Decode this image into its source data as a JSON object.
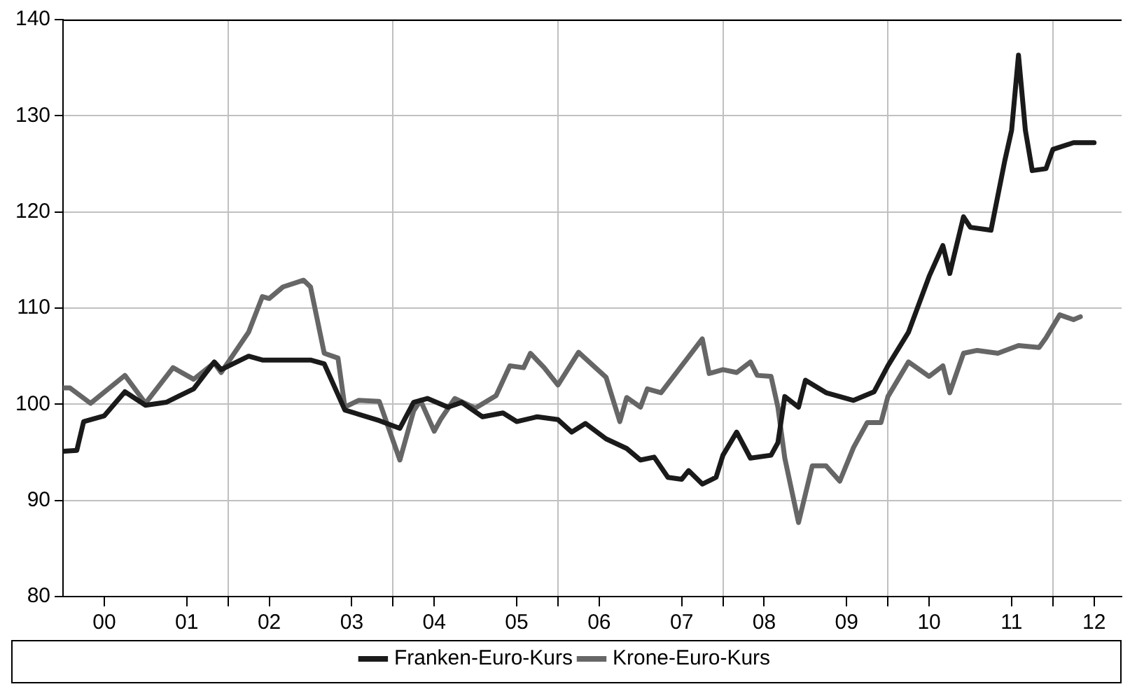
{
  "chart_data": {
    "type": "line",
    "xlim": [
      "2000-01",
      "2012-11"
    ],
    "ylim": [
      80,
      140
    ],
    "yticks": [
      80,
      90,
      100,
      110,
      120,
      130,
      140
    ],
    "xticks": [
      {
        "value": "2000-07",
        "label": "00"
      },
      {
        "value": "2001-07",
        "label": "01"
      },
      {
        "value": "2002-01",
        "label": null
      },
      {
        "value": "2002-07",
        "label": "02"
      },
      {
        "value": "2003-07",
        "label": "03"
      },
      {
        "value": "2004-01",
        "label": null
      },
      {
        "value": "2004-07",
        "label": "04"
      },
      {
        "value": "2005-07",
        "label": "05"
      },
      {
        "value": "2006-01",
        "label": null
      },
      {
        "value": "2006-07",
        "label": "06"
      },
      {
        "value": "2007-07",
        "label": "07"
      },
      {
        "value": "2008-01",
        "label": null
      },
      {
        "value": "2008-07",
        "label": "08"
      },
      {
        "value": "2009-07",
        "label": "09"
      },
      {
        "value": "2010-01",
        "label": null
      },
      {
        "value": "2010-07",
        "label": "10"
      },
      {
        "value": "2011-07",
        "label": "11"
      },
      {
        "value": "2012-01",
        "label": null
      },
      {
        "value": "2012-07",
        "label": "12"
      }
    ],
    "grid": true,
    "legend": "bottom",
    "marker": "none",
    "line_style": "solid",
    "series": [
      {
        "name": "Franken-Euro-Kurs",
        "color": "#1a1a1a",
        "x": [
          "2000-01",
          "2000-03",
          "2000-04",
          "2000-07",
          "2000-10",
          "2001-01",
          "2001-04",
          "2001-08",
          "2001-11",
          "2001-12",
          "2002-04",
          "2002-06",
          "2003-01",
          "2003-03",
          "2003-06",
          "2003-11",
          "2004-02",
          "2004-04",
          "2004-06",
          "2004-09",
          "2004-11",
          "2005-02",
          "2005-05",
          "2005-07",
          "2005-10",
          "2006-01",
          "2006-03",
          "2006-05",
          "2006-08",
          "2006-11",
          "2007-01",
          "2007-03",
          "2007-05",
          "2007-07",
          "2007-08",
          "2007-10",
          "2007-12",
          "2008-01",
          "2008-03",
          "2008-05",
          "2008-08",
          "2008-09",
          "2008-10",
          "2008-12",
          "2009-01",
          "2009-04",
          "2009-08",
          "2009-11",
          "2010-01",
          "2010-04",
          "2010-07",
          "2010-09",
          "2010-10",
          "2010-12",
          "2011-01",
          "2011-04",
          "2011-06",
          "2011-07",
          "2011-08",
          "2011-09",
          "2011-10",
          "2011-12",
          "2012-01",
          "2012-04",
          "2012-07"
        ],
        "values": [
          95.1,
          95.2,
          98.2,
          98.8,
          101.3,
          99.9,
          100.2,
          101.6,
          104.4,
          103.6,
          105,
          104.6,
          104.6,
          104.2,
          99.4,
          98.3,
          97.5,
          100.2,
          100.6,
          99.7,
          100.2,
          98.7,
          99.1,
          98.2,
          98.7,
          98.4,
          97.1,
          98,
          96.4,
          95.4,
          94.2,
          94.5,
          92.4,
          92.2,
          93.1,
          91.7,
          92.4,
          94.7,
          97.1,
          94.4,
          94.7,
          96,
          100.8,
          99.7,
          102.5,
          101.2,
          100.4,
          101.3,
          104,
          107.5,
          113.3,
          116.5,
          113.6,
          119.5,
          118.4,
          118.1,
          125.3,
          128.5,
          136.3,
          128.5,
          124.3,
          124.5,
          126.5,
          127.2,
          127.2
        ]
      },
      {
        "name": "Krone-Euro-Kurs",
        "color": "#666666",
        "x": [
          "2000-01",
          "2000-02",
          "2000-05",
          "2000-10",
          "2001-01",
          "2001-05",
          "2001-08",
          "2001-11",
          "2001-12",
          "2002-04",
          "2002-06",
          "2002-07",
          "2002-09",
          "2002-12",
          "2003-01",
          "2003-03",
          "2003-05",
          "2003-06",
          "2003-08",
          "2003-11",
          "2004-02",
          "2004-04",
          "2004-05",
          "2004-07",
          "2004-08",
          "2004-10",
          "2005-01",
          "2005-04",
          "2005-06",
          "2005-08",
          "2005-09",
          "2005-11",
          "2006-01",
          "2006-04",
          "2006-08",
          "2006-10",
          "2006-11",
          "2007-01",
          "2007-02",
          "2007-04",
          "2007-07",
          "2007-10",
          "2007-11",
          "2008-01",
          "2008-03",
          "2008-05",
          "2008-06",
          "2008-08",
          "2008-09",
          "2008-10",
          "2008-12",
          "2009-02",
          "2009-04",
          "2009-06",
          "2009-08",
          "2009-10",
          "2009-12",
          "2010-01",
          "2010-04",
          "2010-07",
          "2010-09",
          "2010-10",
          "2010-12",
          "2011-02",
          "2011-05",
          "2011-08",
          "2011-11",
          "2011-12",
          "2012-02",
          "2012-04",
          "2012-05"
        ],
        "values": [
          101.7,
          101.7,
          100.1,
          103,
          100.1,
          103.8,
          102.6,
          104.3,
          103.3,
          107.5,
          111.2,
          111,
          112.2,
          112.9,
          112.2,
          105.3,
          104.8,
          99.7,
          100.4,
          100.3,
          94.2,
          99.3,
          100.4,
          97.2,
          98.5,
          100.6,
          99.6,
          100.9,
          104,
          103.8,
          105.3,
          103.8,
          102,
          105.4,
          102.8,
          98.2,
          100.7,
          99.7,
          101.6,
          101.2,
          104,
          106.8,
          103.2,
          103.6,
          103.3,
          104.4,
          103,
          102.9,
          99.7,
          94.4,
          87.7,
          93.6,
          93.6,
          92,
          95.5,
          98.1,
          98.1,
          100.8,
          104.4,
          102.9,
          104,
          101.2,
          105.3,
          105.6,
          105.3,
          106.1,
          105.9,
          106.9,
          109.3,
          108.8,
          109.1
        ]
      }
    ]
  }
}
